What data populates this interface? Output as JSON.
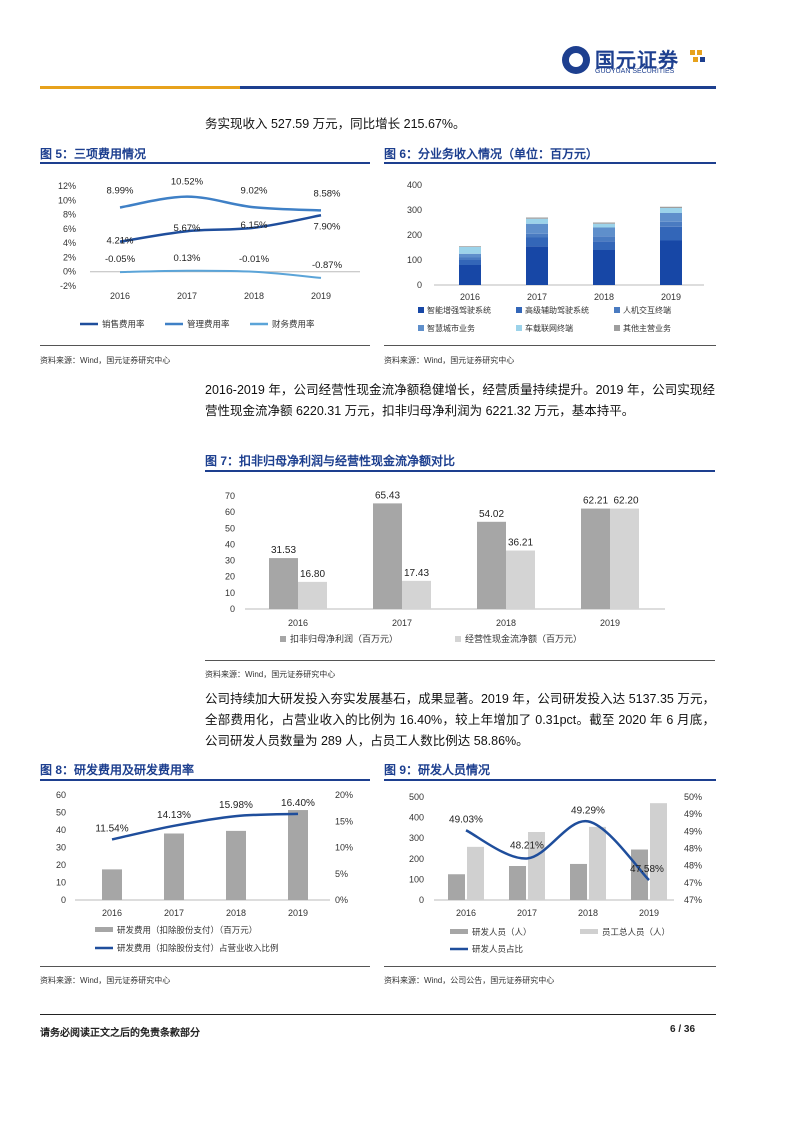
{
  "header": {
    "logo_cn": "国元证券",
    "logo_en": "GUOYUAN SECURITIES"
  },
  "top_paragraph": "务实现收入 527.59 万元，同比增长 215.67%。",
  "fig5": {
    "title": "图 5：三项费用情况",
    "source": "资料来源：Wind，国元证券研究中心",
    "colors": {
      "sales": "#1f4e9c",
      "mgmt": "#3f80c6",
      "finance": "#5ba4d8"
    },
    "chart_data": {
      "type": "line",
      "x": [
        "2016",
        "2017",
        "2018",
        "2019"
      ],
      "ylim": [
        -2,
        12
      ],
      "yticks": [
        "12%",
        "10%",
        "8%",
        "6%",
        "4%",
        "2%",
        "0%",
        "-2%"
      ],
      "series": [
        {
          "name": "销售费用率",
          "values": [
            4.21,
            5.67,
            6.15,
            7.9
          ],
          "labels": [
            "4.21%",
            "5.67%",
            "6.15%",
            "7.90%"
          ]
        },
        {
          "name": "管理费用率",
          "values": [
            8.99,
            10.52,
            9.02,
            8.58
          ],
          "labels": [
            "8.99%",
            "10.52%",
            "9.02%",
            "8.58%"
          ]
        },
        {
          "name": "财务费用率",
          "values": [
            -0.05,
            0.13,
            -0.01,
            -0.87
          ],
          "labels": [
            "-0.05%",
            "0.13%",
            "-0.01%",
            "-0.87%"
          ]
        }
      ]
    }
  },
  "fig6": {
    "title": "图 6：分业务收入情况（单位：百万元）",
    "source": "资料来源：Wind，国元证券研究中心",
    "chart_data": {
      "type": "bar",
      "stacked": true,
      "categories": [
        "2016",
        "2017",
        "2018",
        "2019"
      ],
      "ylim": [
        0,
        400
      ],
      "yticks": [
        "400",
        "300",
        "200",
        "100",
        "0"
      ],
      "series": [
        {
          "name": "智能增强驾驶系统",
          "color": "#1747a6",
          "values": [
            80,
            155,
            140,
            178
          ]
        },
        {
          "name": "高级辅助驾驶系统",
          "color": "#3366b8",
          "values": [
            20,
            35,
            35,
            55
          ]
        },
        {
          "name": "人机交互终端",
          "color": "#4a7bc1",
          "values": [
            10,
            15,
            20,
            20
          ]
        },
        {
          "name": "智慧城市业务",
          "color": "#5f8fcb",
          "values": [
            15,
            40,
            35,
            35
          ]
        },
        {
          "name": "车载联网终端",
          "color": "#9cd3ea",
          "values": [
            27,
            20,
            15,
            20
          ]
        },
        {
          "name": "其他主营业务",
          "color": "#9e9e9e",
          "values": [
            3,
            5,
            5,
            5
          ]
        }
      ]
    }
  },
  "para2": "2016-2019 年，公司经营性现金流净额稳健增长，经营质量持续提升。2019 年，公司实现经营性现金流净额 6220.31 万元，扣非归母净利润为 6221.32 万元，基本持平。",
  "fig7": {
    "title": "图 7：扣非归母净利润与经营性现金流净额对比",
    "source": "资料来源：Wind，国元证券研究中心",
    "chart_data": {
      "type": "bar",
      "categories": [
        "2016",
        "2017",
        "2018",
        "2019"
      ],
      "ylim": [
        0,
        70
      ],
      "yticks": [
        "70",
        "60",
        "50",
        "40",
        "30",
        "20",
        "10",
        "0"
      ],
      "series": [
        {
          "name": "扣非归母净利润（百万元）",
          "color": "#a6a6a6",
          "values": [
            31.53,
            65.43,
            54.02,
            62.21
          ],
          "labels": [
            "31.53",
            "65.43",
            "54.02",
            "62.21"
          ]
        },
        {
          "name": "经营性现金流净额（百万元）",
          "color": "#d4d4d4",
          "values": [
            16.8,
            17.43,
            36.21,
            62.2
          ],
          "labels": [
            "16.80",
            "17.43",
            "36.21",
            "62.20"
          ]
        }
      ]
    }
  },
  "para3": "公司持续加大研发投入夯实发展基石，成果显著。2019 年，公司研发投入达 5137.35 万元，全部费用化，占营业收入的比例为 16.40%，较上年增加了 0.31pct。截至 2020 年 6 月底，公司研发人员数量为 289 人，占员工人数比例达 58.86%。",
  "fig8": {
    "title": "图 8：研发费用及研发费用率",
    "source": "资料来源：Wind，国元证券研究中心",
    "chart_data": {
      "type": "bar",
      "categories": [
        "2016",
        "2017",
        "2018",
        "2019"
      ],
      "ylim": [
        0,
        60
      ],
      "yticks": [
        "60",
        "50",
        "40",
        "30",
        "20",
        "10",
        "0"
      ],
      "y2lim": [
        0,
        20
      ],
      "y2ticks": [
        "20%",
        "15%",
        "10%",
        "5%",
        "0%"
      ],
      "series": [
        {
          "name": "研发费用（扣除股份支付）（百万元）",
          "color": "#a6a6a6",
          "values": [
            17.5,
            38,
            39.5,
            51.4
          ]
        },
        {
          "name": "研发费用（扣除股份支付）占营业收入比例",
          "color": "#1f4e9c",
          "values": [
            11.54,
            14.13,
            15.98,
            16.4
          ],
          "labels": [
            "11.54%",
            "14.13%",
            "15.98%",
            "16.40%"
          ]
        }
      ]
    }
  },
  "fig9": {
    "title": "图 9：研发人员情况",
    "source": "资料来源：Wind，公司公告，国元证券研究中心",
    "chart_data": {
      "type": "bar",
      "categories": [
        "2016",
        "2017",
        "2018",
        "2019"
      ],
      "ylim": [
        0,
        500
      ],
      "yticks": [
        "500",
        "400",
        "300",
        "200",
        "100",
        "0"
      ],
      "y2lim": [
        47,
        50
      ],
      "y2ticks": [
        "50%",
        "49%",
        "49%",
        "48%",
        "48%",
        "47%",
        "47%"
      ],
      "series": [
        {
          "name": "研发人员（人）",
          "color": "#a6a6a6",
          "values": [
            125,
            165,
            175,
            245
          ]
        },
        {
          "name": "员工总人员（人）",
          "color": "#d0d0d0",
          "values": [
            258,
            330,
            355,
            470
          ]
        },
        {
          "name": "研发人员占比",
          "color": "#1f4e9c",
          "values": [
            49.03,
            48.21,
            49.29,
            47.58
          ],
          "labels": [
            "49.03%",
            "48.21%",
            "49.29%",
            "47.58%"
          ]
        }
      ]
    }
  },
  "footer": {
    "disclaimer": "请务必阅读正文之后的免责条款部分",
    "page": "6 / 36"
  }
}
